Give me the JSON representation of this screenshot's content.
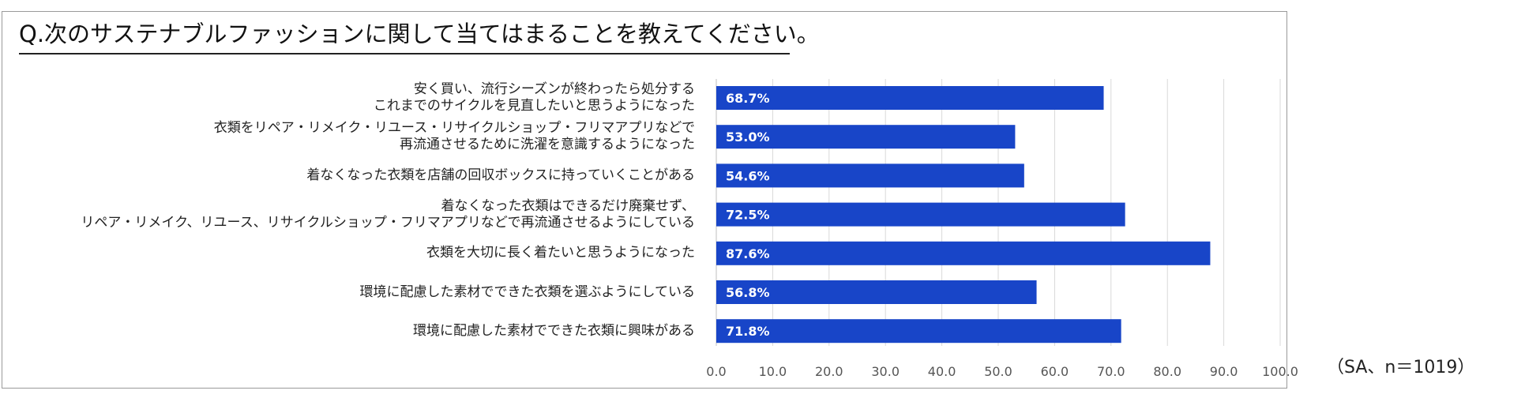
{
  "header": {
    "title": "Q.次のサステナブルファッションに関して当てはまることを教えてください。"
  },
  "chart_data": {
    "type": "bar",
    "orientation": "horizontal",
    "title": "Q.次のサステナブルファッションに関して当てはまることを教えてください。",
    "categories": [
      "安く買い、流行シーズンが終わったら処分する\nこれまでのサイクルを見直したいと思うようになった",
      "衣類をリペア・リメイク・リユース・リサイクルショップ・フリマアプリなどで\n再流通させるために洗濯を意識するようになった",
      "着なくなった衣類を店舗の回収ボックスに持っていくことがある",
      "着なくなった衣類はできるだけ廃棄せず、\nリペア・リメイク、リユース、リサイクルショップ・フリマアプリなどで再流通させるようにしている",
      "衣類を大切に長く着たいと思うようになった",
      "環境に配慮した素材でできた衣類を選ぶようにしている",
      "環境に配慮した素材でできた衣類に興味がある"
    ],
    "values": [
      68.7,
      53.0,
      54.6,
      72.5,
      87.6,
      56.8,
      71.8
    ],
    "value_labels": [
      "68.7%",
      "53.0%",
      "54.6%",
      "72.5%",
      "87.6%",
      "56.8%",
      "71.8%"
    ],
    "xlim": [
      0,
      100
    ],
    "xticks": [
      0,
      10,
      20,
      30,
      40,
      50,
      60,
      70,
      80,
      90,
      100
    ],
    "xtick_labels": [
      "0.0",
      "10.0",
      "20.0",
      "30.0",
      "40.0",
      "50.0",
      "60.0",
      "70.0",
      "80.0",
      "90.0",
      "100.0"
    ],
    "grid": true,
    "bar_color": "#1845c8",
    "grid_color": "#d9d9d9",
    "label_color": "#ffffff",
    "note": "（SA、n＝1019）"
  }
}
